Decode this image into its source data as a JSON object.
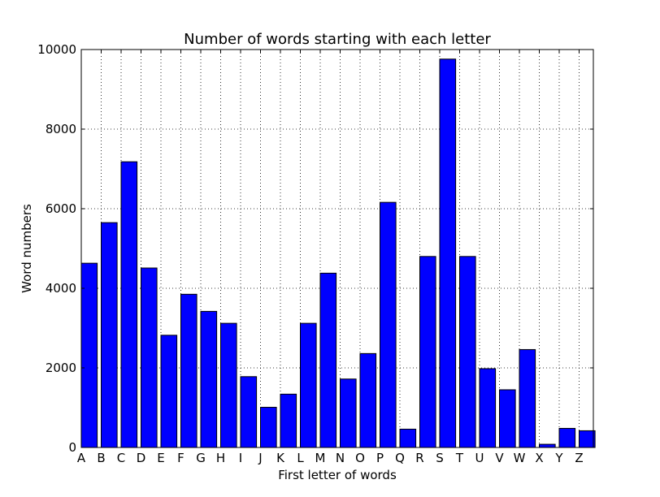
{
  "chart_data": {
    "type": "bar",
    "title": "Number of words starting with each letter",
    "xlabel": "First letter of words",
    "ylabel": "Word numbers",
    "categories": [
      "A",
      "B",
      "C",
      "D",
      "E",
      "F",
      "G",
      "H",
      "I",
      "J",
      "K",
      "L",
      "M",
      "N",
      "O",
      "P",
      "Q",
      "R",
      "S",
      "T",
      "U",
      "V",
      "W",
      "X",
      "Y",
      "Z"
    ],
    "values": [
      4630,
      5650,
      7180,
      4510,
      2820,
      3850,
      3420,
      3120,
      1780,
      1010,
      1340,
      3120,
      4380,
      1720,
      2360,
      6160,
      460,
      4800,
      9760,
      4800,
      1980,
      1450,
      2460,
      80,
      480,
      420
    ],
    "ylim": [
      0,
      10000
    ],
    "yticks": [
      0,
      2000,
      4000,
      6000,
      8000,
      10000
    ],
    "grid": true,
    "bar_color": "#0000ff",
    "edge_color": "#000000"
  }
}
